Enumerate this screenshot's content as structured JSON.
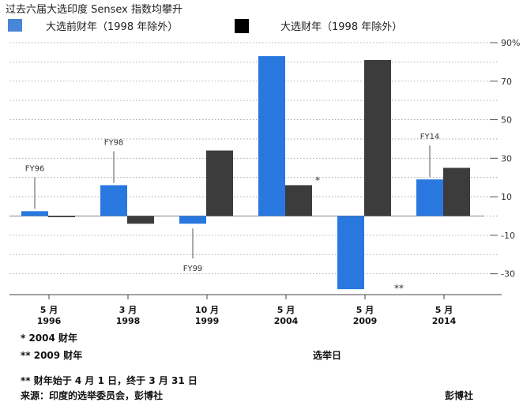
{
  "chart_data": {
    "type": "bar",
    "title": "过去六届大选印度 Sensex 指数均攀升",
    "legend_position": "top",
    "series": [
      {
        "name": "大选前财年（1998 年除外）",
        "color": "#2878e0",
        "values": [
          2.5,
          16,
          -4,
          83,
          -38,
          19
        ]
      },
      {
        "name": "大选财年（1998 年除外）",
        "color": "#3c3c3c",
        "values": [
          -0.5,
          -4,
          34,
          16,
          81,
          25
        ]
      }
    ],
    "categories": [
      {
        "month": "5 月",
        "year": "1996"
      },
      {
        "month": "3 月",
        "year": "1998"
      },
      {
        "month": "10 月",
        "year": "1999"
      },
      {
        "month": "5 月",
        "year": "2004"
      },
      {
        "month": "5 月",
        "year": "2009"
      },
      {
        "month": "5 月",
        "year": "2014"
      }
    ],
    "ylim": [
      -40,
      90
    ],
    "yticks": [
      {
        "value": 90,
        "label": "90%"
      },
      {
        "value": 70,
        "label": "70"
      },
      {
        "value": 50,
        "label": "50"
      },
      {
        "value": 30,
        "label": "30"
      },
      {
        "value": 10,
        "label": "10"
      },
      {
        "value": -10,
        "label": "-10"
      },
      {
        "value": -30,
        "label": "-30"
      }
    ],
    "grid": true,
    "axis_side": "right",
    "annotations": [
      {
        "text": "FY96",
        "category_index": 0,
        "series_index": 0
      },
      {
        "text": "FY98",
        "category_index": 1,
        "series_index": 0
      },
      {
        "text": "FY99",
        "category_index": 2,
        "series_index": 0
      },
      {
        "text": "FY14",
        "category_index": 5,
        "series_index": 0
      }
    ],
    "markers": [
      {
        "text": "*",
        "category_index": 3,
        "series_index": 1
      },
      {
        "text": "**",
        "category_index": 4,
        "series_index": 1
      }
    ],
    "xlabel": "选举日"
  },
  "footnotes": [
    "* 2004 财年",
    "** 2009 财年",
    "** 财年始于 4 月 1 日，终于 3 月 31 日",
    "来源：印度的选举委员会，彭博社"
  ],
  "credit": "彭博社"
}
